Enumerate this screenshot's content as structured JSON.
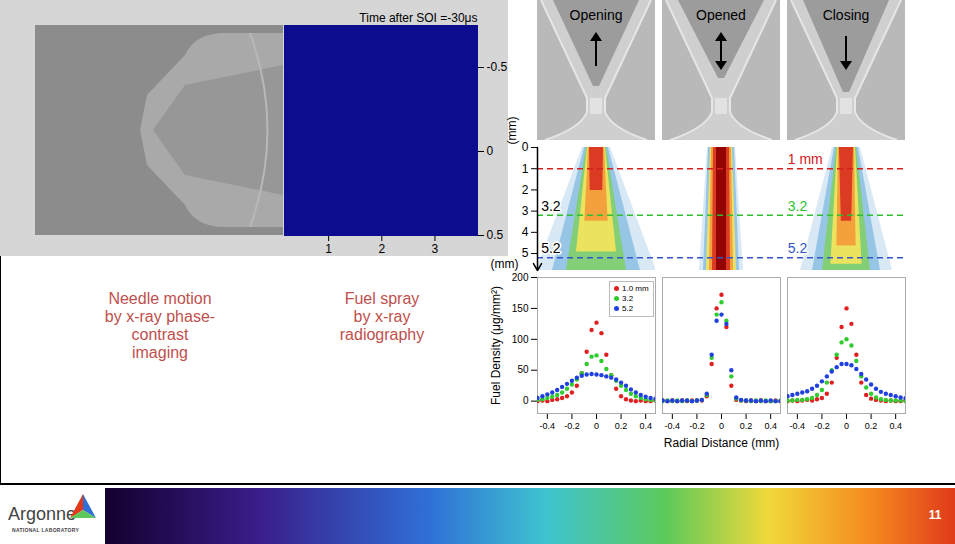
{
  "slide": {
    "radiograph_panel": {
      "title": "Time after SOI =-30μs",
      "color": "#0c0c8e",
      "xlim": [
        0.17,
        3.8
      ],
      "xticks": [
        1,
        2,
        3
      ],
      "xlabel": "(mm)",
      "ylim": [
        -0.75,
        0.5
      ],
      "yticks": [
        -0.5,
        0,
        0.5
      ],
      "ylabel": "(mm)"
    },
    "captions": [
      {
        "lines": [
          "Needle motion",
          "by x-ray phase-",
          "contrast",
          "imaging"
        ],
        "color": "#c0504d"
      },
      {
        "lines": [
          "Fuel spray",
          "by x-ray",
          "radiography"
        ],
        "color": "#c0504d"
      }
    ],
    "needle_frames": [
      {
        "label": "Opening",
        "arrow": "up"
      },
      {
        "label": "Opened",
        "arrow": "both"
      },
      {
        "label": "Closing",
        "arrow": "down"
      }
    ],
    "spray_maps": {
      "ylim": [
        0,
        5.8
      ],
      "yticks": [
        0,
        1,
        2,
        3,
        4,
        5
      ],
      "lines": [
        {
          "value": 1,
          "label": "1 mm",
          "color": "#d62020"
        },
        {
          "value": 3.2,
          "label": "3.2",
          "color": "#2fbf2f",
          "left_label": "3.2"
        },
        {
          "value": 5.2,
          "label": "5.2",
          "color": "#3355cc",
          "left_label": "5.2"
        }
      ]
    },
    "footer": {
      "logo": "Argonne",
      "logo_subtitle": "NATIONAL LABORATORY",
      "page": "11"
    }
  },
  "chart_data": [
    {
      "type": "scatter",
      "x": [
        -0.48,
        -0.44,
        -0.4,
        -0.36,
        -0.32,
        -0.28,
        -0.24,
        -0.2,
        -0.16,
        -0.12,
        -0.08,
        -0.04,
        0,
        0.04,
        0.08,
        0.12,
        0.16,
        0.2,
        0.24,
        0.28,
        0.32,
        0.36,
        0.4,
        0.44,
        0.48
      ],
      "series": [
        {
          "name": "1.0 mm",
          "color": "#e02020",
          "values": [
            0,
            1,
            0,
            2,
            3,
            5,
            8,
            14,
            25,
            45,
            80,
            115,
            127,
            110,
            75,
            42,
            20,
            8,
            3,
            1,
            0,
            1,
            0,
            0,
            1
          ]
        },
        {
          "name": "3.2",
          "color": "#2ecc2e",
          "values": [
            2,
            3,
            5,
            7,
            10,
            14,
            20,
            27,
            35,
            45,
            60,
            72,
            74,
            65,
            52,
            42,
            33,
            25,
            18,
            12,
            8,
            5,
            3,
            2,
            1
          ]
        },
        {
          "name": "5.2",
          "color": "#2040e0",
          "values": [
            5,
            8,
            11,
            14,
            18,
            23,
            28,
            33,
            38,
            41,
            43,
            44,
            43,
            42,
            40,
            38,
            35,
            30,
            25,
            19,
            14,
            10,
            7,
            5,
            4
          ]
        }
      ],
      "xlim": [
        -0.48,
        0.48
      ],
      "xticks": [
        -0.4,
        -0.2,
        0,
        0.2,
        0.4
      ],
      "ylim": [
        -20,
        200
      ],
      "yticks": [
        0,
        50,
        100,
        150,
        200
      ],
      "ylabel": "Fuel Density (μg/mm²)",
      "legend": "top-right",
      "marker": "circle"
    },
    {
      "type": "scatter",
      "x": [
        -0.48,
        -0.44,
        -0.4,
        -0.36,
        -0.32,
        -0.28,
        -0.24,
        -0.2,
        -0.16,
        -0.12,
        -0.08,
        -0.04,
        0,
        0.04,
        0.08,
        0.12,
        0.16,
        0.2,
        0.24,
        0.28,
        0.32,
        0.36,
        0.4,
        0.44,
        0.48
      ],
      "series": [
        {
          "name": "1.0 mm",
          "color": "#e02020",
          "values": [
            1,
            0,
            1,
            0,
            1,
            0,
            1,
            1,
            1,
            8,
            60,
            150,
            172,
            120,
            25,
            2,
            1,
            0,
            1,
            0,
            1,
            0,
            0,
            1,
            0
          ]
        },
        {
          "name": "3.2",
          "color": "#2ecc2e",
          "values": [
            0,
            1,
            0,
            1,
            0,
            1,
            0,
            1,
            2,
            10,
            70,
            140,
            160,
            130,
            40,
            4,
            1,
            1,
            0,
            1,
            0,
            1,
            0,
            0,
            1
          ]
        },
        {
          "name": "5.2",
          "color": "#2040e0",
          "values": [
            1,
            0,
            1,
            0,
            1,
            1,
            0,
            1,
            2,
            12,
            75,
            130,
            140,
            125,
            50,
            6,
            2,
            1,
            1,
            0,
            1,
            0,
            1,
            0,
            0
          ]
        }
      ],
      "xlim": [
        -0.48,
        0.48
      ],
      "xticks": [
        -0.4,
        -0.2,
        0,
        0.2,
        0.4
      ],
      "ylim": [
        -20,
        200
      ],
      "xlabel": "Radial Distance (mm)",
      "tick_labels": "x",
      "marker": "circle"
    },
    {
      "type": "scatter",
      "x": [
        -0.48,
        -0.44,
        -0.4,
        -0.36,
        -0.32,
        -0.28,
        -0.24,
        -0.2,
        -0.16,
        -0.12,
        -0.08,
        -0.04,
        0,
        0.04,
        0.08,
        0.12,
        0.16,
        0.2,
        0.24,
        0.28,
        0.32,
        0.36,
        0.4,
        0.44,
        0.48
      ],
      "series": [
        {
          "name": "1.0 mm",
          "color": "#e02020",
          "values": [
            0,
            1,
            0,
            1,
            2,
            1,
            3,
            5,
            12,
            30,
            70,
            120,
            150,
            125,
            75,
            30,
            10,
            4,
            2,
            1,
            0,
            1,
            0,
            0,
            1
          ]
        },
        {
          "name": "3.2",
          "color": "#2ecc2e",
          "values": [
            1,
            1,
            2,
            2,
            3,
            5,
            10,
            18,
            30,
            50,
            75,
            95,
            100,
            90,
            65,
            40,
            22,
            12,
            6,
            3,
            2,
            1,
            1,
            1,
            0
          ]
        },
        {
          "name": "5.2",
          "color": "#2040e0",
          "values": [
            8,
            10,
            12,
            14,
            16,
            20,
            25,
            32,
            40,
            48,
            55,
            60,
            60,
            58,
            52,
            44,
            35,
            27,
            20,
            15,
            12,
            10,
            8,
            6,
            5
          ]
        }
      ],
      "xlim": [
        -0.48,
        0.48
      ],
      "xticks": [
        -0.4,
        -0.2,
        0,
        0.2,
        0.4
      ],
      "ylim": [
        -20,
        200
      ],
      "tick_labels": "x",
      "marker": "circle"
    }
  ]
}
